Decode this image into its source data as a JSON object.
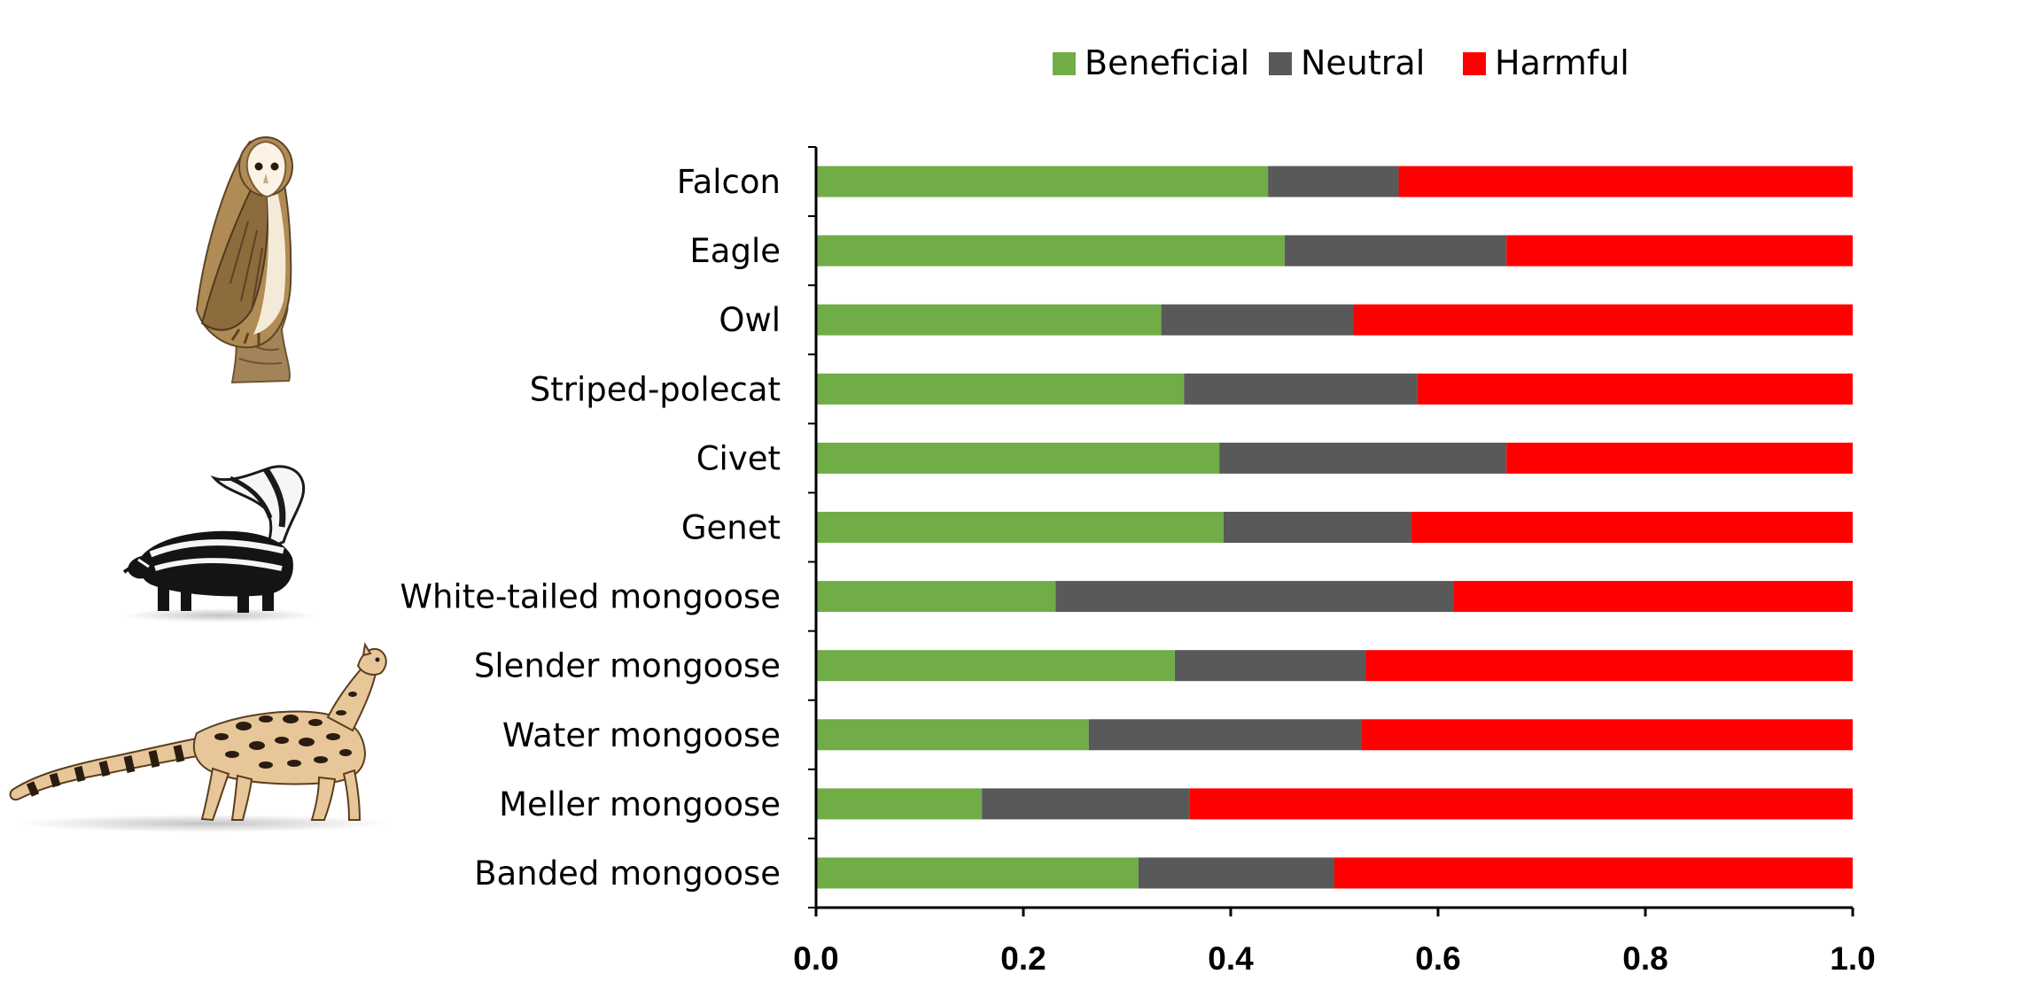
{
  "chart_data": {
    "type": "bar",
    "orientation": "horizontal",
    "stacked": true,
    "categories": [
      "Falcon",
      "Eagle",
      "Owl",
      "Striped-polecat",
      "Civet",
      "Genet",
      "White-tailed mongoose",
      "Slender mongoose",
      "Water mongoose",
      "Meller mongoose",
      "Banded mongoose"
    ],
    "series": [
      {
        "name": "Beneficial",
        "color": "#70ad47",
        "values": [
          0.436,
          0.452,
          0.333,
          0.355,
          0.389,
          0.393,
          0.231,
          0.346,
          0.263,
          0.16,
          0.311
        ]
      },
      {
        "name": "Neutral",
        "color": "#595959",
        "values": [
          0.126,
          0.214,
          0.185,
          0.225,
          0.277,
          0.181,
          0.384,
          0.184,
          0.263,
          0.2,
          0.189
        ]
      },
      {
        "name": "Harmful",
        "color": "#ff0000",
        "values": [
          0.438,
          0.334,
          0.482,
          0.42,
          0.334,
          0.426,
          0.385,
          0.47,
          0.474,
          0.64,
          0.5
        ]
      }
    ],
    "xlim": [
      0,
      1
    ],
    "xticks": [
      "0.0",
      "0.2",
      "0.4",
      "0.6",
      "0.8",
      "1.0"
    ],
    "title": "",
    "xlabel": "",
    "ylabel": "",
    "grid": false,
    "legend_position": "top"
  },
  "illustrations": [
    {
      "name": "owl-illustration"
    },
    {
      "name": "striped-polecat-illustration"
    },
    {
      "name": "genet-illustration"
    }
  ]
}
